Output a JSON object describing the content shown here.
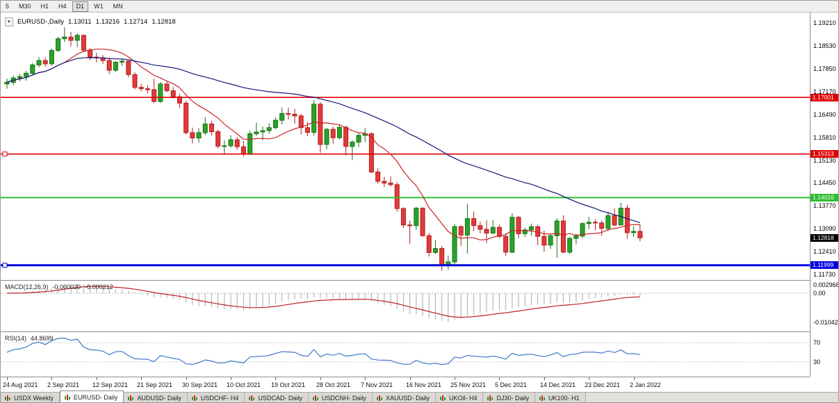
{
  "toolbar": {
    "timeframes": [
      {
        "label": "5",
        "active": false
      },
      {
        "label": "M30",
        "active": false
      },
      {
        "label": "H1",
        "active": false
      },
      {
        "label": "H4",
        "active": false
      },
      {
        "label": "D1",
        "active": true
      },
      {
        "label": "W1",
        "active": false
      },
      {
        "label": "MN",
        "active": false
      }
    ]
  },
  "chart_header": {
    "arrow": "▼",
    "symbol": "EURUSD-,Daily",
    "open": "1.13011",
    "high": "1.13216",
    "low": "1.12714",
    "close": "1.12818"
  },
  "price_axis": {
    "labels": [
      "1.19210",
      "1.18530",
      "1.17850",
      "1.17170",
      "1.16490",
      "1.15810",
      "1.15130",
      "1.14450",
      "1.13770",
      "1.13090",
      "1.12410",
      "1.11730"
    ]
  },
  "hlines": [
    {
      "label": "1.17001",
      "price": 1.17001,
      "color": "#e00000",
      "width": 1.6,
      "handle": false
    },
    {
      "label": "1.15313",
      "price": 1.15313,
      "color": "#e00000",
      "width": 1.6,
      "handle": true
    },
    {
      "label": "1.14016",
      "price": 1.14016,
      "color": "#2fbe2f",
      "width": 2,
      "handle": false
    },
    {
      "label": "1.11999",
      "price": 1.11999,
      "color": "#0000e0",
      "width": 3,
      "handle": true
    }
  ],
  "current_price": {
    "label": "1.12818",
    "value": 1.12818,
    "bg": "#000000"
  },
  "macd_panel": {
    "label": "MACD(12,26,9)",
    "value_main": "-0.000020",
    "value_signal": "-0.000212",
    "axis_labels": [
      {
        "text": "0.002966",
        "value": 0.002966
      },
      {
        "text": "0.00",
        "value": 0
      },
      {
        "text": "-0.010422",
        "value": -0.010422
      }
    ]
  },
  "rsi_panel": {
    "label": "RSI(14)",
    "value": "44.8699",
    "axis_labels": [
      {
        "text": "70",
        "value": 70
      },
      {
        "text": "30",
        "value": 30
      }
    ]
  },
  "time_axis": {
    "labels": [
      "24 Aug 2021",
      "2 Sep 2021",
      "12 Sep 2021",
      "21 Sep 2021",
      "30 Sep 2021",
      "10 Oct 2021",
      "19 Oct 2021",
      "28 Oct 2021",
      "7 Nov 2021",
      "16 Nov 2021",
      "25 Nov 2021",
      "5 Dec 2021",
      "14 Dec 2021",
      "23 Dec 2021",
      "2 Jan 2022"
    ]
  },
  "tabs": [
    {
      "label": "USDX Weekly",
      "active": false
    },
    {
      "label": "EURUSD- Daily",
      "active": true
    },
    {
      "label": "AUDUSD- Daily",
      "active": false
    },
    {
      "label": "USDCHF- H4",
      "active": false
    },
    {
      "label": "USDCAD- Daily",
      "active": false
    },
    {
      "label": "USDCNH- Daily",
      "active": false
    },
    {
      "label": "XAUUSD- Daily",
      "active": false
    },
    {
      "label": "UKOil- H4",
      "active": false
    },
    {
      "label": "DJ30- Daily",
      "active": false
    },
    {
      "label": "UK100- H1",
      "active": false
    }
  ],
  "chart_data": {
    "type": "candlestick",
    "title": "EURUSD-,Daily",
    "price_range": [
      1.1156,
      1.1953
    ],
    "colors": {
      "bull": "#29a329",
      "bull_border": "#127112",
      "bear": "#e13b3b",
      "bear_border": "#b21b1b"
    },
    "overlays": [
      {
        "name": "ma-fast-line",
        "type": "sma",
        "period": 10,
        "color": "#cc2222"
      },
      {
        "name": "ma-slow-line",
        "type": "sma",
        "period": 45,
        "color": "#16167e"
      }
    ],
    "indicators": [
      {
        "name": "macd",
        "params": [
          12,
          26,
          9
        ],
        "range": [
          -0.0136,
          0.00445
        ],
        "histogram_color": "#a9a9a9",
        "signal_color": "#c41e1e"
      },
      {
        "name": "rsi",
        "params": [
          14
        ],
        "range": [
          1,
          92
        ],
        "levels": [
          30,
          70
        ],
        "line_color": "#3e77c8"
      }
    ],
    "x_labels": [
      "24 Aug 2021",
      "2 Sep 2021",
      "12 Sep 2021",
      "21 Sep 2021",
      "30 Sep 2021",
      "10 Oct 2021",
      "19 Oct 2021",
      "28 Oct 2021",
      "7 Nov 2021",
      "16 Nov 2021",
      "25 Nov 2021",
      "5 Dec 2021",
      "14 Dec 2021",
      "23 Dec 2021",
      "2 Jan 2022"
    ],
    "candles": [
      [
        1.174,
        1.1756,
        1.1726,
        1.1745
      ],
      [
        1.1745,
        1.1765,
        1.1736,
        1.1758
      ],
      [
        1.1758,
        1.177,
        1.1748,
        1.1762
      ],
      [
        1.1762,
        1.1779,
        1.175,
        1.1772
      ],
      [
        1.1772,
        1.1802,
        1.1765,
        1.1797
      ],
      [
        1.1797,
        1.182,
        1.179,
        1.181
      ],
      [
        1.181,
        1.1818,
        1.1792,
        1.18
      ],
      [
        1.18,
        1.1846,
        1.1794,
        1.184
      ],
      [
        1.184,
        1.188,
        1.1835,
        1.1875
      ],
      [
        1.1875,
        1.1909,
        1.1865,
        1.188
      ],
      [
        1.188,
        1.1895,
        1.1852,
        1.187
      ],
      [
        1.187,
        1.1891,
        1.185,
        1.1885
      ],
      [
        1.1885,
        1.1887,
        1.1835,
        1.1841
      ],
      [
        1.1841,
        1.1848,
        1.181,
        1.182
      ],
      [
        1.182,
        1.1833,
        1.1804,
        1.1818
      ],
      [
        1.1818,
        1.1826,
        1.18,
        1.181
      ],
      [
        1.181,
        1.1819,
        1.177,
        1.1781
      ],
      [
        1.1781,
        1.1808,
        1.1775,
        1.1805
      ],
      [
        1.1805,
        1.1816,
        1.1794,
        1.1808
      ],
      [
        1.1808,
        1.181,
        1.176,
        1.1768
      ],
      [
        1.1768,
        1.1776,
        1.1724,
        1.173
      ],
      [
        1.173,
        1.174,
        1.1718,
        1.1726
      ],
      [
        1.1726,
        1.1736,
        1.1712,
        1.1723
      ],
      [
        1.1723,
        1.1756,
        1.1683,
        1.1688
      ],
      [
        1.1688,
        1.1746,
        1.1684,
        1.174
      ],
      [
        1.174,
        1.1749,
        1.1715,
        1.172
      ],
      [
        1.172,
        1.1731,
        1.1696,
        1.1702
      ],
      [
        1.1702,
        1.1711,
        1.1668,
        1.1683
      ],
      [
        1.1683,
        1.169,
        1.1589,
        1.1595
      ],
      [
        1.1595,
        1.161,
        1.1563,
        1.1579
      ],
      [
        1.1579,
        1.1608,
        1.1565,
        1.1595
      ],
      [
        1.1595,
        1.1641,
        1.1588,
        1.1621
      ],
      [
        1.1621,
        1.163,
        1.1586,
        1.1598
      ],
      [
        1.1598,
        1.1604,
        1.1548,
        1.1555
      ],
      [
        1.1555,
        1.1572,
        1.1529,
        1.1556
      ],
      [
        1.1556,
        1.1587,
        1.155,
        1.1574
      ],
      [
        1.1574,
        1.1582,
        1.1544,
        1.1553
      ],
      [
        1.1553,
        1.157,
        1.1524,
        1.1531
      ],
      [
        1.1531,
        1.1601,
        1.1529,
        1.1592
      ],
      [
        1.1592,
        1.1625,
        1.1585,
        1.1597
      ],
      [
        1.1597,
        1.1613,
        1.1572,
        1.1601
      ],
      [
        1.1601,
        1.1623,
        1.1592,
        1.161
      ],
      [
        1.161,
        1.1641,
        1.1605,
        1.1632
      ],
      [
        1.1632,
        1.167,
        1.162,
        1.1652
      ],
      [
        1.1652,
        1.1669,
        1.1634,
        1.165
      ],
      [
        1.165,
        1.1666,
        1.1622,
        1.1645
      ],
      [
        1.1645,
        1.1651,
        1.159,
        1.161
      ],
      [
        1.161,
        1.1627,
        1.1585,
        1.1596
      ],
      [
        1.1596,
        1.1692,
        1.1586,
        1.168
      ],
      [
        1.168,
        1.1686,
        1.1535,
        1.156
      ],
      [
        1.156,
        1.161,
        1.1545,
        1.1605
      ],
      [
        1.1605,
        1.1613,
        1.1562,
        1.158
      ],
      [
        1.158,
        1.162,
        1.1575,
        1.1611
      ],
      [
        1.1611,
        1.1616,
        1.1527,
        1.1554
      ],
      [
        1.1554,
        1.1573,
        1.1513,
        1.1567
      ],
      [
        1.1567,
        1.1595,
        1.1552,
        1.1587
      ],
      [
        1.1587,
        1.1609,
        1.1567,
        1.1592
      ],
      [
        1.1592,
        1.1596,
        1.1475,
        1.1478
      ],
      [
        1.1478,
        1.1489,
        1.1443,
        1.145
      ],
      [
        1.145,
        1.1464,
        1.1433,
        1.1445
      ],
      [
        1.1445,
        1.1465,
        1.1435,
        1.144
      ],
      [
        1.144,
        1.1448,
        1.136,
        1.1369
      ],
      [
        1.1369,
        1.1373,
        1.1311,
        1.132
      ],
      [
        1.132,
        1.1333,
        1.1263,
        1.1318
      ],
      [
        1.1318,
        1.1374,
        1.1305,
        1.137
      ],
      [
        1.137,
        1.1373,
        1.1285,
        1.1288
      ],
      [
        1.1288,
        1.1296,
        1.1226,
        1.1238
      ],
      [
        1.1238,
        1.1275,
        1.1233,
        1.125
      ],
      [
        1.125,
        1.1258,
        1.1184,
        1.12
      ],
      [
        1.12,
        1.1229,
        1.1186,
        1.121
      ],
      [
        1.121,
        1.1323,
        1.1203,
        1.1315
      ],
      [
        1.1315,
        1.132,
        1.1258,
        1.129
      ],
      [
        1.129,
        1.1383,
        1.1235,
        1.1339
      ],
      [
        1.1339,
        1.136,
        1.1302,
        1.1318
      ],
      [
        1.1318,
        1.133,
        1.1295,
        1.1307
      ],
      [
        1.1307,
        1.1334,
        1.1266,
        1.1296
      ],
      [
        1.1296,
        1.1335,
        1.1292,
        1.1313
      ],
      [
        1.1313,
        1.1321,
        1.1281,
        1.1286
      ],
      [
        1.1286,
        1.1295,
        1.1228,
        1.1239
      ],
      [
        1.1239,
        1.1355,
        1.1236,
        1.1343
      ],
      [
        1.1343,
        1.1347,
        1.128,
        1.1294
      ],
      [
        1.1294,
        1.1312,
        1.1284,
        1.1305
      ],
      [
        1.1305,
        1.1324,
        1.1288,
        1.1315
      ],
      [
        1.1315,
        1.132,
        1.126,
        1.1286
      ],
      [
        1.1286,
        1.1303,
        1.124,
        1.126
      ],
      [
        1.126,
        1.1292,
        1.1249,
        1.1288
      ],
      [
        1.1288,
        1.134,
        1.1222,
        1.1332
      ],
      [
        1.1332,
        1.1349,
        1.1236,
        1.1239
      ],
      [
        1.1239,
        1.1285,
        1.1234,
        1.128
      ],
      [
        1.128,
        1.1295,
        1.1262,
        1.1287
      ],
      [
        1.1287,
        1.1328,
        1.128,
        1.1324
      ],
      [
        1.1324,
        1.1344,
        1.1308,
        1.1328
      ],
      [
        1.1328,
        1.1337,
        1.1304,
        1.1326
      ],
      [
        1.1326,
        1.1333,
        1.1288,
        1.131
      ],
      [
        1.131,
        1.136,
        1.1301,
        1.1348
      ],
      [
        1.1348,
        1.137,
        1.1316,
        1.132
      ],
      [
        1.132,
        1.1386,
        1.1318,
        1.137
      ],
      [
        1.137,
        1.138,
        1.1279,
        1.1297
      ],
      [
        1.1297,
        1.1316,
        1.1284,
        1.1301
      ],
      [
        1.1301,
        1.1322,
        1.1271,
        1.1282
      ]
    ]
  }
}
